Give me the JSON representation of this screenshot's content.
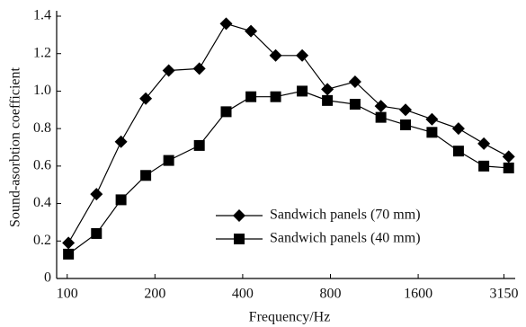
{
  "chart_data": {
    "type": "line",
    "x_label": "Frequency/Hz",
    "y_label": "Sound-asorbtion coefficient",
    "x": [
      101,
      126,
      153,
      186,
      223,
      284,
      351,
      427,
      519,
      640,
      781,
      972,
      1192,
      1448,
      1784,
      2200,
      2688,
      3270
    ],
    "series": [
      {
        "name": "Sandwich panels (70 mm)",
        "color": "#000000",
        "marker": "diamond",
        "values": [
          0.19,
          0.45,
          0.73,
          0.96,
          1.11,
          1.12,
          1.36,
          1.32,
          1.19,
          1.19,
          1.01,
          1.05,
          0.92,
          0.9,
          0.85,
          0.8,
          0.72,
          0.65
        ]
      },
      {
        "name": "Sandwich panels (40 mm)",
        "color": "#000000",
        "marker": "square",
        "values": [
          0.13,
          0.24,
          0.42,
          0.55,
          0.63,
          0.71,
          0.89,
          0.97,
          0.97,
          1.0,
          0.95,
          0.93,
          0.86,
          0.82,
          0.78,
          0.68,
          0.6,
          0.59
        ]
      }
    ],
    "xscale": "log",
    "xlim": [
      92,
      3300
    ],
    "xticks": [
      100,
      200,
      400,
      800,
      1600,
      3150
    ],
    "ylim": [
      0,
      1.4
    ],
    "yticks": [
      0,
      0.2,
      0.4,
      0.6,
      0.8,
      {
        "value": 1,
        "label": "1.0"
      },
      1.2,
      1.4
    ],
    "grid": false,
    "legend": "lower-center"
  }
}
